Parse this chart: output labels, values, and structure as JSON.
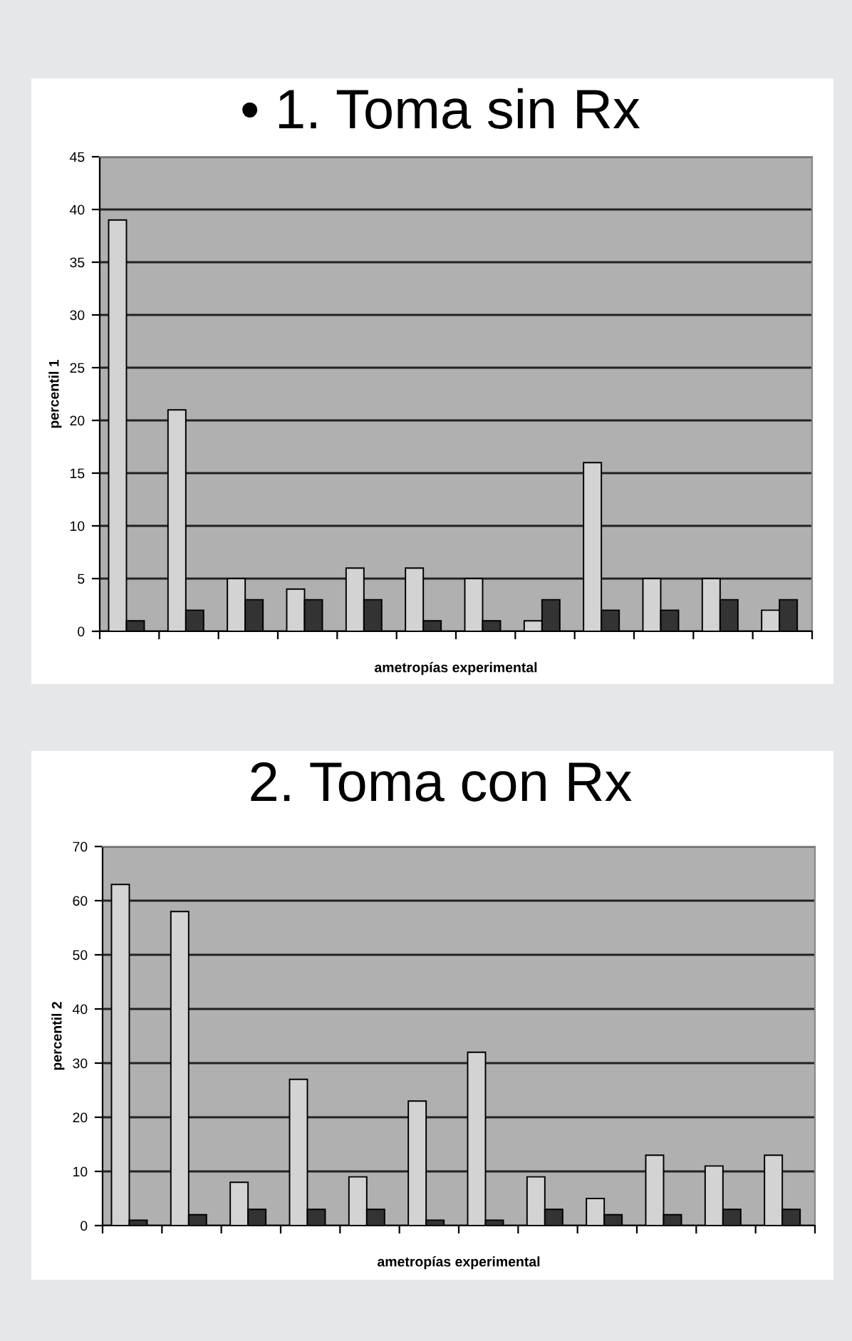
{
  "chart_data": [
    {
      "type": "bar",
      "title": "• 1. Toma sin Rx",
      "xlabel": "ametropías experimental",
      "ylabel": "percentil 1",
      "categories": [
        null,
        null,
        null,
        null,
        null,
        null,
        null,
        null,
        null,
        null,
        null,
        null
      ],
      "series": [
        {
          "color": "#d3d3d3",
          "values": [
            39,
            21,
            5,
            4,
            6,
            6,
            5,
            1,
            16,
            5,
            5,
            2
          ]
        },
        {
          "color": "#333333",
          "values": [
            1,
            2,
            3,
            3,
            3,
            1,
            1,
            3,
            2,
            2,
            3,
            3
          ]
        }
      ],
      "ylim": [
        0,
        45
      ],
      "yticks": [
        0,
        5,
        10,
        15,
        20,
        25,
        30,
        35,
        40,
        45
      ],
      "grid": "y",
      "legend": false
    },
    {
      "type": "bar",
      "title": "2. Toma con Rx",
      "xlabel": "ametropías experimental",
      "ylabel": "percentil 2",
      "categories": [
        null,
        null,
        null,
        null,
        null,
        null,
        null,
        null,
        null,
        null,
        null,
        null
      ],
      "series": [
        {
          "color": "#d3d3d3",
          "values": [
            63,
            58,
            8,
            27,
            9,
            23,
            32,
            9,
            5,
            13,
            11,
            13
          ]
        },
        {
          "color": "#333333",
          "values": [
            1,
            2,
            3,
            3,
            3,
            1,
            1,
            3,
            2,
            2,
            3,
            3
          ]
        }
      ],
      "ylim": [
        0,
        70
      ],
      "yticks": [
        0,
        10,
        20,
        30,
        40,
        50,
        60,
        70
      ],
      "grid": "y",
      "legend": false
    }
  ]
}
